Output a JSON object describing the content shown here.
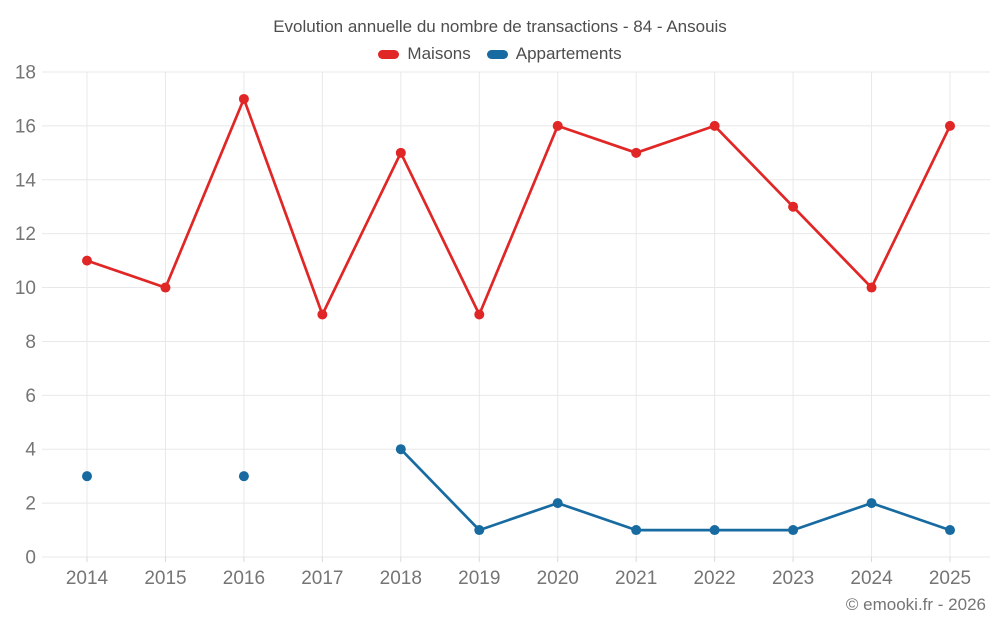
{
  "title": "Evolution annuelle du nombre de transactions - 84 - Ansouis",
  "copyright": "© emooki.fr - 2026",
  "colors": {
    "maisons_red": "#e12626",
    "appartements_blue": "#176ba1",
    "grid": "#e8e8e8",
    "tick": "#d9d9d9",
    "axis_label": "#757575",
    "text": "#4d4d4d",
    "background": "#ffffff"
  },
  "chart_data": {
    "type": "line",
    "title": "Evolution annuelle du nombre de transactions - 84 - Ansouis",
    "categories": [
      "2014",
      "2015",
      "2016",
      "2017",
      "2018",
      "2019",
      "2020",
      "2021",
      "2022",
      "2023",
      "2024",
      "2025"
    ],
    "series": [
      {
        "name": "Maisons",
        "color": "#e12626",
        "values": [
          11,
          10,
          17,
          9,
          15,
          9,
          16,
          15,
          16,
          13,
          10,
          16
        ]
      },
      {
        "name": "Appartements",
        "color": "#176ba1",
        "values": [
          3,
          null,
          3,
          null,
          4,
          1,
          2,
          1,
          1,
          1,
          2,
          1
        ]
      }
    ],
    "xlabel": "",
    "ylabel": "",
    "ylim": [
      0,
      18
    ],
    "ytick_step": 2,
    "yticks": [
      0,
      2,
      4,
      6,
      8,
      10,
      12,
      14,
      16,
      18
    ],
    "grid": true,
    "legend_position": "top",
    "marker": "circle"
  }
}
